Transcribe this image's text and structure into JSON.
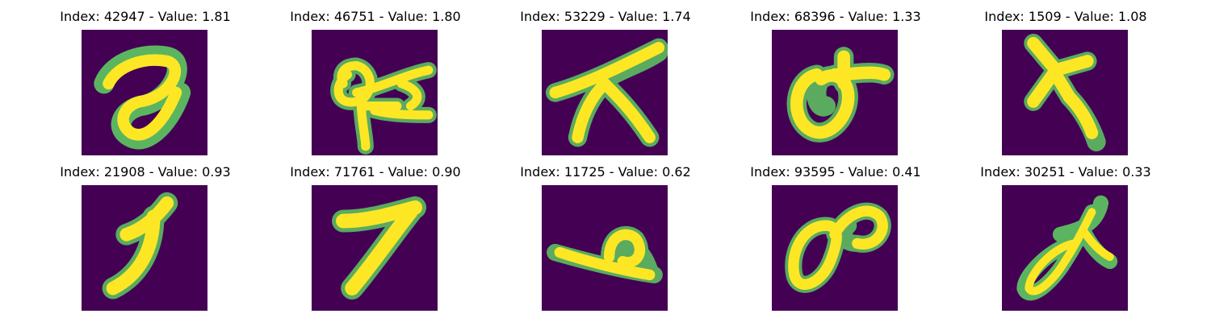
{
  "colors": {
    "background": "#440154",
    "low": "#21918c",
    "mid": "#5ec962",
    "high": "#fde725"
  },
  "panels": [
    {
      "index_text": "Index: 42947 - Value: 1.81",
      "glyph": "loop-stroke-digit"
    },
    {
      "index_text": "Index: 46751 - Value: 1.80",
      "glyph": "loop-and-cross-strokes"
    },
    {
      "index_text": "Index: 53229 - Value: 1.74",
      "glyph": "branching-strokes"
    },
    {
      "index_text": "Index: 68396 - Value: 1.33",
      "glyph": "ring-with-top-bar"
    },
    {
      "index_text": "Index: 1509 - Value: 1.08",
      "glyph": "cross-with-tail"
    },
    {
      "index_text": "Index: 21908 - Value: 0.93",
      "glyph": "curved-one-stroke"
    },
    {
      "index_text": "Index: 71761 - Value: 0.90",
      "glyph": "seven-like-stroke"
    },
    {
      "index_text": "Index: 11725 - Value: 0.62",
      "glyph": "flat-stroke-with-loop"
    },
    {
      "index_text": "Index: 93595 - Value: 0.41",
      "glyph": "two-loops"
    },
    {
      "index_text": "Index: 30251 - Value: 0.33",
      "glyph": "slanted-loop-with-branch"
    }
  ]
}
